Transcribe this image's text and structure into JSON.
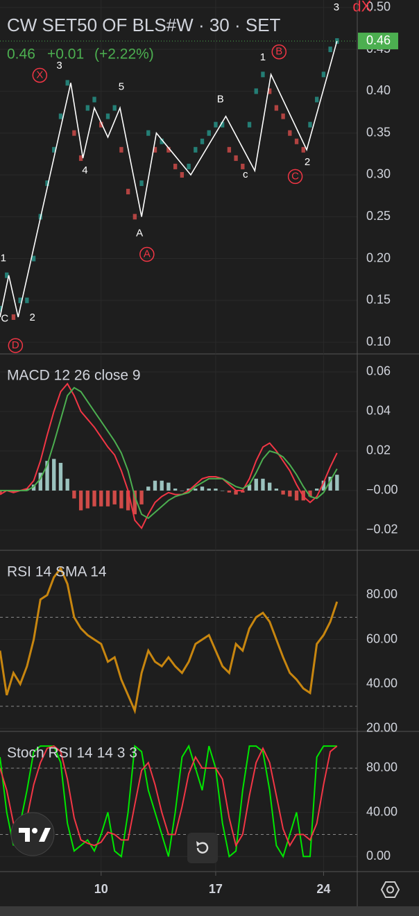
{
  "chart_data": [
    {
      "type": "tick",
      "title": "CW SET50 OF BLS#W · 30 · SET",
      "last": 0.46,
      "change": "+0.01",
      "change_pct": "(+2.22%)",
      "up_color": "#26a69a",
      "down_color": "#ef5350",
      "last_color": "#4caf50",
      "xlim": [
        0,
        53
      ],
      "ylim": [
        0.086,
        0.509
      ],
      "yticks": [
        {
          "value": 0.1,
          "label": "0.10"
        },
        0.15,
        {
          "value": 0.2,
          "label": "0.20"
        },
        0.25,
        {
          "value": 0.3,
          "label": "0.30"
        },
        0.35,
        {
          "value": 0.4,
          "label": "0.40"
        },
        0.45,
        {
          "value": 0.5,
          "label": "0.50"
        }
      ],
      "values": [
        0.14,
        0.18,
        0.13,
        0.15,
        0.15,
        0.2,
        0.25,
        0.29,
        0.33,
        0.37,
        0.41,
        0.35,
        0.32,
        0.38,
        0.39,
        0.36,
        0.37,
        0.38,
        0.33,
        0.28,
        0.25,
        0.29,
        0.35,
        0.33,
        0.34,
        0.33,
        0.31,
        0.3,
        0.31,
        0.33,
        0.34,
        0.35,
        0.36,
        0.36,
        0.33,
        0.32,
        0.31,
        0.36,
        0.4,
        0.42,
        0.4,
        0.38,
        0.37,
        0.35,
        0.34,
        0.33,
        0.36,
        0.39,
        0.42,
        0.45,
        0.46
      ],
      "wave": {
        "color": "#ffffff",
        "x": [
          0,
          1.3,
          2.7,
          10.5,
          12.3,
          14,
          16,
          17.8,
          21,
          23.2,
          28.3,
          33.5,
          37.8,
          40.2,
          45.5,
          50
        ],
        "y": [
          0.13,
          0.18,
          0.13,
          0.41,
          0.32,
          0.38,
          0.345,
          0.38,
          0.25,
          0.35,
          0.3,
          0.37,
          0.305,
          0.42,
          0.33,
          0.46
        ]
      },
      "annotations": [
        {
          "text": "1",
          "x": 0.5,
          "y": 0.2,
          "color": "#ffffff"
        },
        {
          "text": "C",
          "x": 0.7,
          "y": 0.128,
          "color": "#ffffff"
        },
        {
          "text": "2",
          "x": 4.8,
          "y": 0.129,
          "color": "#ffffff"
        },
        {
          "text": "3",
          "x": 8.8,
          "y": 0.43,
          "color": "#ffffff"
        },
        {
          "text": "4",
          "x": 12.6,
          "y": 0.305,
          "color": "#ffffff"
        },
        {
          "text": "5",
          "x": 18,
          "y": 0.405,
          "color": "#ffffff"
        },
        {
          "text": "A",
          "x": 20.7,
          "y": 0.23,
          "color": "#ffffff"
        },
        {
          "text": "B",
          "x": 32.7,
          "y": 0.39,
          "color": "#ffffff"
        },
        {
          "text": "c",
          "x": 36.4,
          "y": 0.3,
          "color": "#ffffff"
        },
        {
          "text": "1",
          "x": 39,
          "y": 0.44,
          "color": "#ffffff"
        },
        {
          "text": "2",
          "x": 45.6,
          "y": 0.315,
          "color": "#ffffff"
        },
        {
          "text": "3",
          "x": 49.9,
          "y": 0.5,
          "color": "#ffffff"
        },
        {
          "text": "X",
          "x": 5.9,
          "y": 0.419,
          "color": "#f23645",
          "circled": true
        },
        {
          "text": "A",
          "x": 21.8,
          "y": 0.205,
          "color": "#f23645",
          "circled": true
        },
        {
          "text": "B",
          "x": 41.4,
          "y": 0.447,
          "color": "#f23645",
          "circled": true
        },
        {
          "text": "C",
          "x": 43.8,
          "y": 0.298,
          "color": "#f23645",
          "circled": true
        },
        {
          "text": "D",
          "x": 2.3,
          "y": 0.096,
          "color": "#f23645",
          "circled": true
        },
        {
          "text": "dX",
          "x": 53.7,
          "y": 0.5,
          "color": "#f23645"
        }
      ]
    },
    {
      "type": "combo",
      "title": "MACD 12 26 close 9",
      "xlim": [
        0,
        53
      ],
      "ylim": [
        -0.0302,
        0.0684
      ],
      "yticks": [
        {
          "value": -0.02,
          "label": "−0.02"
        },
        {
          "value": 0,
          "label": "−0.00"
        },
        0.02,
        0.04,
        0.06
      ],
      "histogram": {
        "up_color": "#b2dfdb",
        "down_color": "#ef5350",
        "values": [
          -0.002,
          0,
          -0.001,
          0,
          0.001,
          0.003,
          0.009,
          0.015,
          0.016,
          0.014,
          0.006,
          -0.004,
          -0.01,
          -0.009,
          -0.008,
          -0.008,
          -0.008,
          -0.007,
          -0.009,
          -0.01,
          -0.012,
          -0.007,
          0.002,
          0.005,
          0.005,
          0.004,
          0.001,
          0,
          0.001,
          0.001,
          0.002,
          0.001,
          0.001,
          0,
          -0.001,
          -0.002,
          -0.001,
          0.003,
          0.006,
          0.006,
          0.004,
          0.001,
          -0.002,
          -0.003,
          -0.005,
          -0.005,
          -0.003,
          0.001,
          0.005,
          0.007,
          0.008
        ]
      },
      "series": [
        {
          "color": "#f23645",
          "values": [
            -0.002,
            0,
            -0.001,
            0,
            0.001,
            0.005,
            0.015,
            0.028,
            0.04,
            0.05,
            0.054,
            0.048,
            0.04,
            0.036,
            0.032,
            0.027,
            0.022,
            0.018,
            0.01,
            0,
            -0.015,
            -0.019,
            -0.012,
            -0.006,
            -0.003,
            -0.001,
            -0.002,
            -0.002,
            0,
            0.003,
            0.006,
            0.007,
            0.007,
            0.006,
            0.003,
            0,
            0,
            0.006,
            0.015,
            0.022,
            0.024,
            0.02,
            0.015,
            0.01,
            0.003,
            -0.003,
            -0.006,
            -0.003,
            0.004,
            0.012,
            0.019
          ]
        },
        {
          "color": "#4caf50",
          "values": [
            0,
            0,
            0,
            0,
            0,
            0.002,
            0.006,
            0.013,
            0.024,
            0.036,
            0.048,
            0.052,
            0.05,
            0.045,
            0.04,
            0.035,
            0.03,
            0.025,
            0.019,
            0.01,
            -0.003,
            -0.012,
            -0.014,
            -0.011,
            -0.008,
            -0.005,
            -0.003,
            -0.002,
            -0.001,
            0.002,
            0.004,
            0.006,
            0.006,
            0.006,
            0.004,
            0.002,
            0.001,
            0.003,
            0.009,
            0.016,
            0.02,
            0.019,
            0.017,
            0.013,
            0.008,
            0.002,
            -0.003,
            -0.004,
            -0.001,
            0.005,
            0.011
          ]
        }
      ]
    },
    {
      "type": "line",
      "title": "RSI 14 SMA 14",
      "xlim": [
        0,
        53
      ],
      "ylim": [
        19,
        99.5
      ],
      "yticks": [
        {
          "value": 20,
          "label": "20.00"
        },
        {
          "value": 40,
          "label": "40.00"
        },
        {
          "value": 60,
          "label": "60.00"
        },
        {
          "value": 80,
          "label": "80.00"
        }
      ],
      "levels": [
        70,
        30
      ],
      "series": [
        {
          "color": "#c8860f",
          "values": [
            55,
            35,
            45,
            40,
            48,
            60,
            78,
            80,
            88,
            92,
            85,
            70,
            65,
            62,
            60,
            58,
            50,
            52,
            42,
            35,
            28,
            45,
            55,
            50,
            48,
            52,
            48,
            45,
            50,
            58,
            60,
            62,
            55,
            48,
            45,
            58,
            55,
            65,
            70,
            72,
            68,
            60,
            52,
            45,
            42,
            38,
            36,
            58,
            62,
            68,
            77
          ]
        }
      ]
    },
    {
      "type": "line",
      "title": "Stoch RSI 14 14 3 3",
      "xlim": [
        0,
        53
      ],
      "ylim": [
        -13,
        112
      ],
      "yticks": [
        {
          "value": 0,
          "label": "0.00"
        },
        {
          "value": 40,
          "label": "40.00"
        },
        {
          "value": 80,
          "label": "80.00"
        }
      ],
      "levels": [
        80,
        20
      ],
      "xticks": [
        {
          "value": 15,
          "label": "10"
        },
        {
          "value": 32,
          "label": "17"
        },
        {
          "value": 48,
          "label": "24"
        }
      ],
      "series": [
        {
          "color": "#00e600",
          "values": [
            90,
            40,
            10,
            30,
            60,
            95,
            100,
            100,
            100,
            85,
            30,
            5,
            10,
            15,
            5,
            20,
            40,
            5,
            0,
            40,
            100,
            95,
            60,
            40,
            20,
            0,
            40,
            90,
            100,
            80,
            60,
            100,
            80,
            30,
            0,
            5,
            60,
            100,
            100,
            95,
            60,
            10,
            0,
            20,
            40,
            0,
            0,
            90,
            100,
            100,
            100
          ]
        },
        {
          "color": "#f23645",
          "values": [
            80,
            60,
            30,
            20,
            35,
            65,
            85,
            98,
            100,
            95,
            70,
            35,
            15,
            12,
            10,
            13,
            22,
            20,
            15,
            15,
            47,
            78,
            85,
            65,
            40,
            20,
            20,
            45,
            75,
            90,
            80,
            80,
            80,
            70,
            35,
            10,
            20,
            55,
            85,
            98,
            85,
            55,
            25,
            10,
            20,
            20,
            15,
            30,
            65,
            95,
            100
          ]
        }
      ]
    }
  ]
}
